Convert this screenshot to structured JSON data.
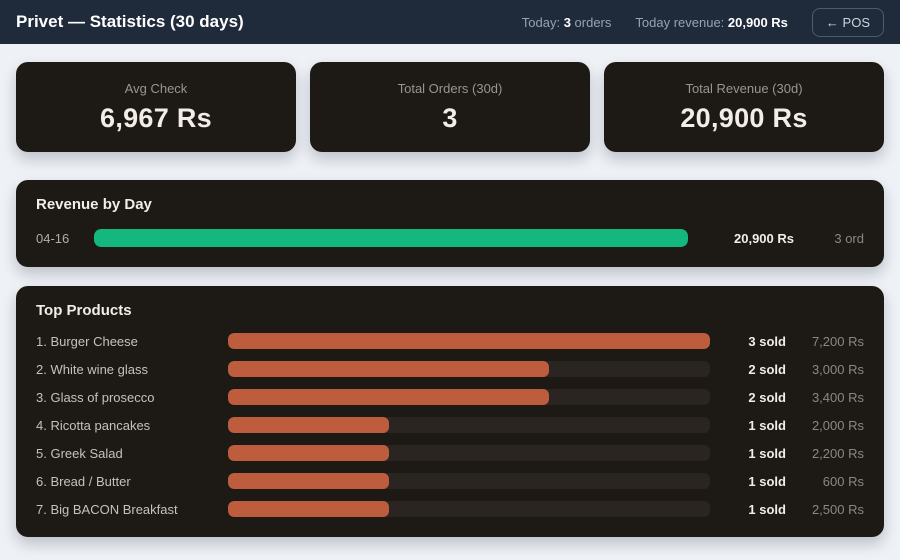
{
  "header": {
    "title": "Privet — Statistics (30 days)",
    "today_orders": {
      "label": "Today:",
      "value": "3",
      "suffix": " orders"
    },
    "today_revenue": {
      "label": "Today revenue:",
      "value": "20,900 Rs"
    },
    "pos_button_label": "← POS"
  },
  "stat_cards": [
    {
      "label": "Avg Check",
      "value": "6,967 Rs"
    },
    {
      "label": "Total Orders (30d)",
      "value": "3"
    },
    {
      "label": "Total Revenue (30d)",
      "value": "20,900 Rs"
    }
  ],
  "revenue_by_day": {
    "title": "Revenue by Day",
    "rows": [
      {
        "date": "04-16",
        "revenue": "20,900 Rs",
        "orders": "3 ord",
        "bar_pct": 100
      }
    ]
  },
  "top_products": {
    "title": "Top Products",
    "rows": [
      {
        "name": "1. Burger Cheese",
        "sold": "3 sold",
        "revenue": "7,200 Rs",
        "bar_pct": 100
      },
      {
        "name": "2. White wine glass",
        "sold": "2 sold",
        "revenue": "3,000 Rs",
        "bar_pct": 66.7
      },
      {
        "name": "3. Glass of prosecco",
        "sold": "2 sold",
        "revenue": "3,400 Rs",
        "bar_pct": 66.7
      },
      {
        "name": "4. Ricotta pancakes",
        "sold": "1 sold",
        "revenue": "2,000 Rs",
        "bar_pct": 33.3
      },
      {
        "name": "5. Greek Salad",
        "sold": "1 sold",
        "revenue": "2,200 Rs",
        "bar_pct": 33.3
      },
      {
        "name": "6. Bread / Butter",
        "sold": "1 sold",
        "revenue": "600 Rs",
        "bar_pct": 33.3
      },
      {
        "name": "7. Big BACON Breakfast",
        "sold": "1 sold",
        "revenue": "2,500 Rs",
        "bar_pct": 33.3
      }
    ]
  },
  "colors": {
    "header_bg": "#1f2a3b",
    "page_bg": "#eef1f6",
    "panel_bg": "#1d1915",
    "bar_track": "#2a2520",
    "revenue_bar": "#14b87e",
    "product_bar": "#bd5d3d",
    "value_text": "#f2ede6"
  },
  "chart_data": [
    {
      "type": "bar",
      "title": "Revenue by Day",
      "categories": [
        "04-16"
      ],
      "series": [
        {
          "name": "Revenue (Rs)",
          "values": [
            20900
          ]
        },
        {
          "name": "Orders",
          "values": [
            3
          ]
        }
      ],
      "orientation": "horizontal",
      "xlim": [
        0,
        20900
      ]
    },
    {
      "type": "bar",
      "title": "Top Products",
      "categories": [
        "Burger Cheese",
        "White wine glass",
        "Glass of prosecco",
        "Ricotta pancakes",
        "Greek Salad",
        "Bread / Butter",
        "Big BACON Breakfast"
      ],
      "series": [
        {
          "name": "Units sold",
          "values": [
            3,
            2,
            2,
            1,
            1,
            1,
            1
          ]
        },
        {
          "name": "Revenue (Rs)",
          "values": [
            7200,
            3000,
            3400,
            2000,
            2200,
            600,
            2500
          ]
        }
      ],
      "orientation": "horizontal",
      "xlim": [
        0,
        3
      ]
    }
  ]
}
